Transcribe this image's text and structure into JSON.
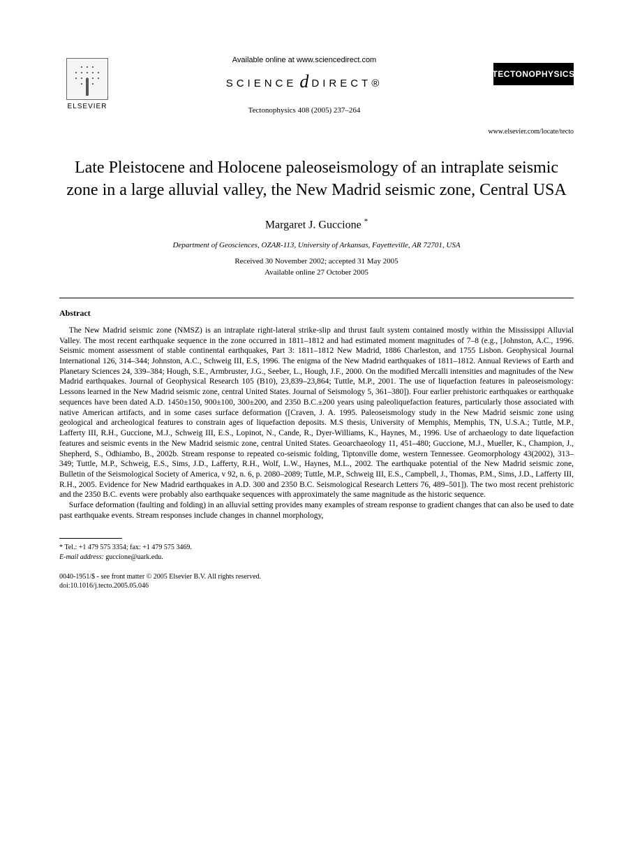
{
  "header": {
    "publisher_name": "ELSEVIER",
    "available_text": "Available online at www.sciencedirect.com",
    "sd_left": "SCIENCE",
    "sd_right": "DIRECT®",
    "citation": "Tectonophysics 408 (2005) 237–264",
    "journal_logo_text": "TECTONOPHYSICS",
    "locate_url": "www.elsevier.com/locate/tecto"
  },
  "article": {
    "title": "Late Pleistocene and Holocene paleoseismology of an intraplate seismic zone in a large alluvial valley, the New Madrid seismic zone, Central USA",
    "author": "Margaret J. Guccione",
    "author_marker": "*",
    "affiliation": "Department of Geosciences, OZAR-113, University of Arkansas, Fayetteville, AR 72701, USA",
    "received": "Received 30 November 2002; accepted 31 May 2005",
    "available_online": "Available online 27 October 2005"
  },
  "abstract": {
    "heading": "Abstract",
    "p1": "The New Madrid seismic zone (NMSZ) is an intraplate right-lateral strike-slip and thrust fault system contained mostly within the Mississippi Alluvial Valley. The most recent earthquake sequence in the zone occurred in 1811–1812 and had estimated moment magnitudes of 7–8 (e.g., [Johnston, A.C., 1996. Seismic moment assessment of stable continental earthquakes, Part 3: 1811–1812 New Madrid, 1886 Charleston, and 1755 Lisbon. Geophysical Journal International 126, 314–344; Johnston, A.C., Schweig III, E.S, 1996. The enigma of the New Madrid earthquakes of 1811–1812. Annual Reviews of Earth and Planetary Sciences 24, 339–384; Hough, S.E., Armbruster, J.G., Seeber, L., Hough, J.F., 2000. On the modified Mercalli intensities and magnitudes of the New Madrid earthquakes. Journal of Geophysical Research 105 (B10), 23,839–23,864; Tuttle, M.P., 2001. The use of liquefaction features in paleoseismology: Lessons learned in the New Madrid seismic zone, central United States. Journal of Seismology 5, 361–380]). Four earlier prehistoric earthquakes or earthquake sequences have been dated A.D. 1450±150, 900±100, 300±200, and 2350 B.C.±200 years using paleoliquefaction features, particularly those associated with native American artifacts, and in some cases surface deformation ([Craven, J. A. 1995. Paleoseismology study in the New Madrid seismic zone using geological and archeological features to constrain ages of liquefaction deposits. M.S thesis, University of Memphis, Memphis, TN, U.S.A.; Tuttle, M.P., Lafferty III, R.H., Guccione, M.J., Schweig III, E.S., Lopinot, N., Cande, R., Dyer-Williams, K., Haynes, M., 1996. Use of archaeology to date liquefaction features and seismic events in the New Madrid seismic zone, central United States. Geoarchaeology 11, 451–480; Guccione, M.J., Mueller, K., Champion, J., Shepherd, S., Odhiambo, B., 2002b. Stream response to repeated co-seismic folding, Tiptonville dome, western Tennessee. Geomorphology 43(2002), 313–349; Tuttle, M.P., Schweig, E.S., Sims, J.D., Lafferty, R.H., Wolf, L.W., Haynes, M.L., 2002. The earthquake potential of the New Madrid seismic zone, Bulletin of the Seismological Society of America, v 92, n. 6, p. 2080–2089; Tuttle, M.P., Schweig III, E.S., Campbell, J., Thomas, P.M., Sims, J.D., Lafferty III, R.H., 2005. Evidence for New Madrid earthquakes in A.D. 300 and 2350 B.C. Seismological Research Letters 76, 489–501]). The two most recent prehistoric and the 2350 B.C. events were probably also earthquake sequences with approximately the same magnitude as the historic sequence.",
    "p2": "Surface deformation (faulting and folding) in an alluvial setting provides many examples of stream response to gradient changes that can also be used to date past earthquake events. Stream responses include changes in channel morphology,"
  },
  "footnote": {
    "marker": "*",
    "tel": "Tel.: +1 479 575 3354; fax: +1 479 575 3469.",
    "email_label": "E-mail address:",
    "email": "guccione@uark.edu."
  },
  "footer": {
    "issn_line": "0040-1951/$ - see front matter © 2005 Elsevier B.V. All rights reserved.",
    "doi_line": "doi:10.1016/j.tecto.2005.05.046"
  },
  "colors": {
    "text": "#000000",
    "background": "#ffffff",
    "logo_bg": "#000000",
    "logo_fg": "#ffffff"
  },
  "typography": {
    "title_size_pt": 18,
    "author_size_pt": 12,
    "body_size_pt": 9,
    "footnote_size_pt": 8
  }
}
